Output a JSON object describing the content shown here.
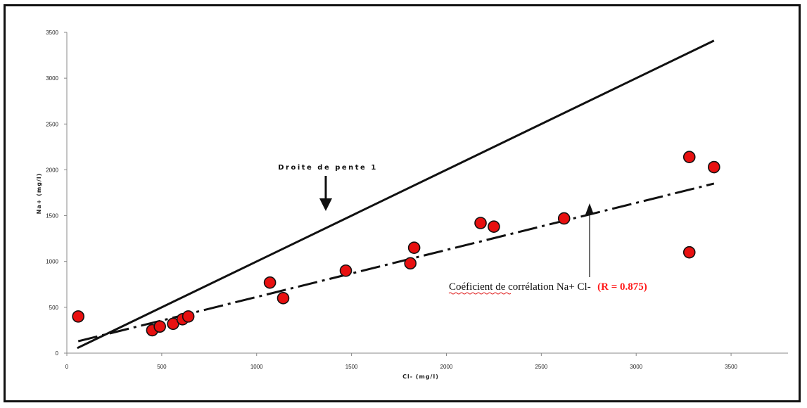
{
  "chart_data": {
    "type": "scatter",
    "xlabel": "Cl- (mg/l)",
    "ylabel": "Na+ (mg/l)",
    "xlim": [
      0,
      3800
    ],
    "ylim": [
      0,
      3500
    ],
    "xticks": [
      "0",
      "500",
      "1000",
      "1500",
      "2000",
      "2500",
      "3000",
      "3500"
    ],
    "yticks": [
      "0",
      "500",
      "1000",
      "1500",
      "2000",
      "2500",
      "3000",
      "3500"
    ],
    "grid": false,
    "series": [
      {
        "name": "",
        "marker_color": "#e81010",
        "points": [
          {
            "x": 60,
            "y": 400
          },
          {
            "x": 450,
            "y": 250
          },
          {
            "x": 490,
            "y": 290
          },
          {
            "x": 560,
            "y": 320
          },
          {
            "x": 610,
            "y": 370
          },
          {
            "x": 640,
            "y": 400
          },
          {
            "x": 1070,
            "y": 770
          },
          {
            "x": 1140,
            "y": 600
          },
          {
            "x": 1470,
            "y": 900
          },
          {
            "x": 1810,
            "y": 980
          },
          {
            "x": 1830,
            "y": 1150
          },
          {
            "x": 2180,
            "y": 1420
          },
          {
            "x": 2250,
            "y": 1380
          },
          {
            "x": 2620,
            "y": 1470
          },
          {
            "x": 3280,
            "y": 2140
          },
          {
            "x": 3280,
            "y": 1100
          },
          {
            "x": 3410,
            "y": 2030
          }
        ]
      }
    ],
    "lines": [
      {
        "name": "Droite de pente 1",
        "style": "solid",
        "from": [
          55,
          55
        ],
        "to": [
          3410,
          3410
        ]
      },
      {
        "name": "trend",
        "style": "dash-dot",
        "from": [
          60,
          130
        ],
        "to": [
          3410,
          1850
        ]
      }
    ],
    "annotations": {
      "slope_label": "Droite de pente 1",
      "correlation_label": "Coéficient de corrélation Na+ Cl-",
      "correlation_value": "(R = 0.875)"
    }
  }
}
